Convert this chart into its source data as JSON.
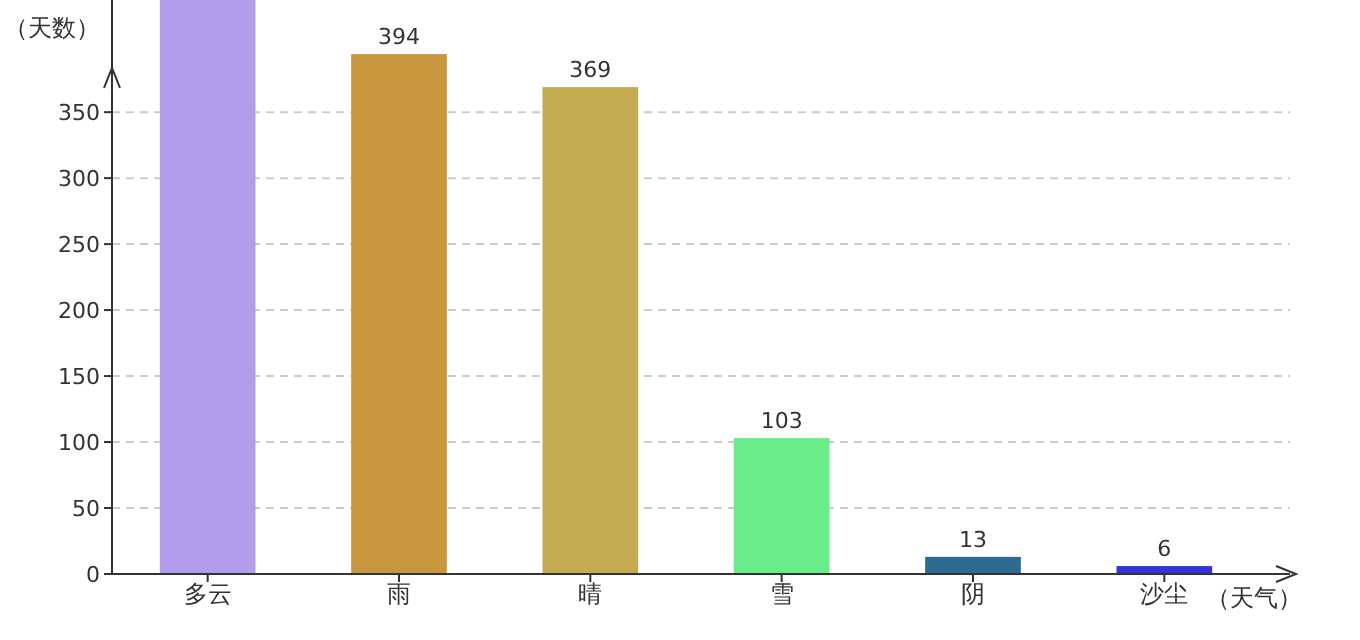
{
  "chart_data": {
    "type": "bar",
    "xlabel": "（天气）",
    "ylabel": "（天数）",
    "categories": [
      "多云",
      "雨",
      "晴",
      "雪",
      "阴",
      "沙尘"
    ],
    "values": [
      435,
      394,
      369,
      103,
      13,
      6
    ],
    "colors": [
      "#b39ceb",
      "#c8963c",
      "#c4aa50",
      "#69ec8a",
      "#2e6b8f",
      "#3333dd"
    ],
    "value_labels": [
      null,
      "394",
      "369",
      "103",
      "13",
      "6"
    ],
    "ylim": [
      0,
      435
    ],
    "yticks": [
      0,
      50,
      100,
      150,
      200,
      250,
      300,
      350
    ],
    "grid": "y"
  }
}
